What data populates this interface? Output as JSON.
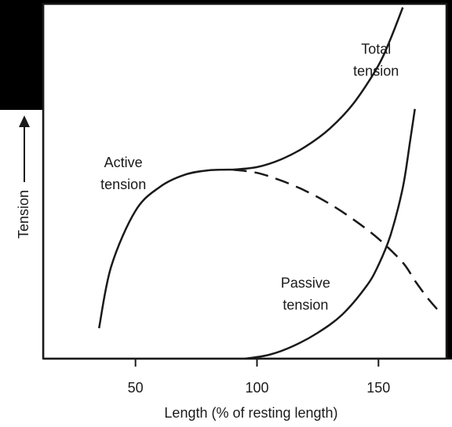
{
  "chart_data": {
    "type": "line",
    "title": "",
    "xlabel": "Length (% of resting length)",
    "ylabel": "Tension",
    "xlim": [
      12,
      178
    ],
    "ylim": [
      0,
      100
    ],
    "x_ticks": [
      50,
      100,
      150
    ],
    "y_ticks": [],
    "grid": false,
    "legend": "none",
    "series": [
      {
        "name": "Active tension",
        "line_style": "solid",
        "color": "#1a1a1a",
        "x": [
          35,
          40,
          50,
          60,
          70,
          80,
          90
        ],
        "y": [
          8.6,
          26,
          41.7,
          48.4,
          51.8,
          53.1,
          53.3
        ]
      },
      {
        "name": "",
        "line_style": "dashed",
        "color": "#1a1a1a",
        "x": [
          90,
          100,
          110,
          120,
          130,
          140,
          150,
          160,
          165,
          170,
          175
        ],
        "y": [
          53.3,
          52.4,
          50.2,
          47.3,
          43.6,
          39.1,
          33.8,
          27.1,
          22,
          17.3,
          13.3
        ]
      },
      {
        "name": "Total tension",
        "line_style": "solid",
        "color": "#1a1a1a",
        "x": [
          90,
          100,
          110,
          120,
          130,
          140,
          150,
          155,
          160
        ],
        "y": [
          53.3,
          54,
          56.2,
          59.8,
          64.9,
          72.2,
          82.7,
          90.2,
          99
        ]
      },
      {
        "name": "Passive tension",
        "line_style": "solid",
        "color": "#1a1a1a",
        "x": [
          95,
          105,
          115,
          125,
          135,
          145,
          150,
          155,
          160,
          163,
          165
        ],
        "y": [
          0,
          1.1,
          3.6,
          7.3,
          12.4,
          20.4,
          26.4,
          34.9,
          48.2,
          61.3,
          70.4
        ]
      }
    ],
    "annotations": [
      {
        "text_lines": [
          "Total",
          "tension"
        ],
        "x": 149,
        "y": 86
      },
      {
        "text_lines": [
          "Active",
          "tension"
        ],
        "x": 45,
        "y": 54
      },
      {
        "text_lines": [
          "Passive",
          "tension"
        ],
        "x": 120,
        "y": 20
      }
    ]
  }
}
